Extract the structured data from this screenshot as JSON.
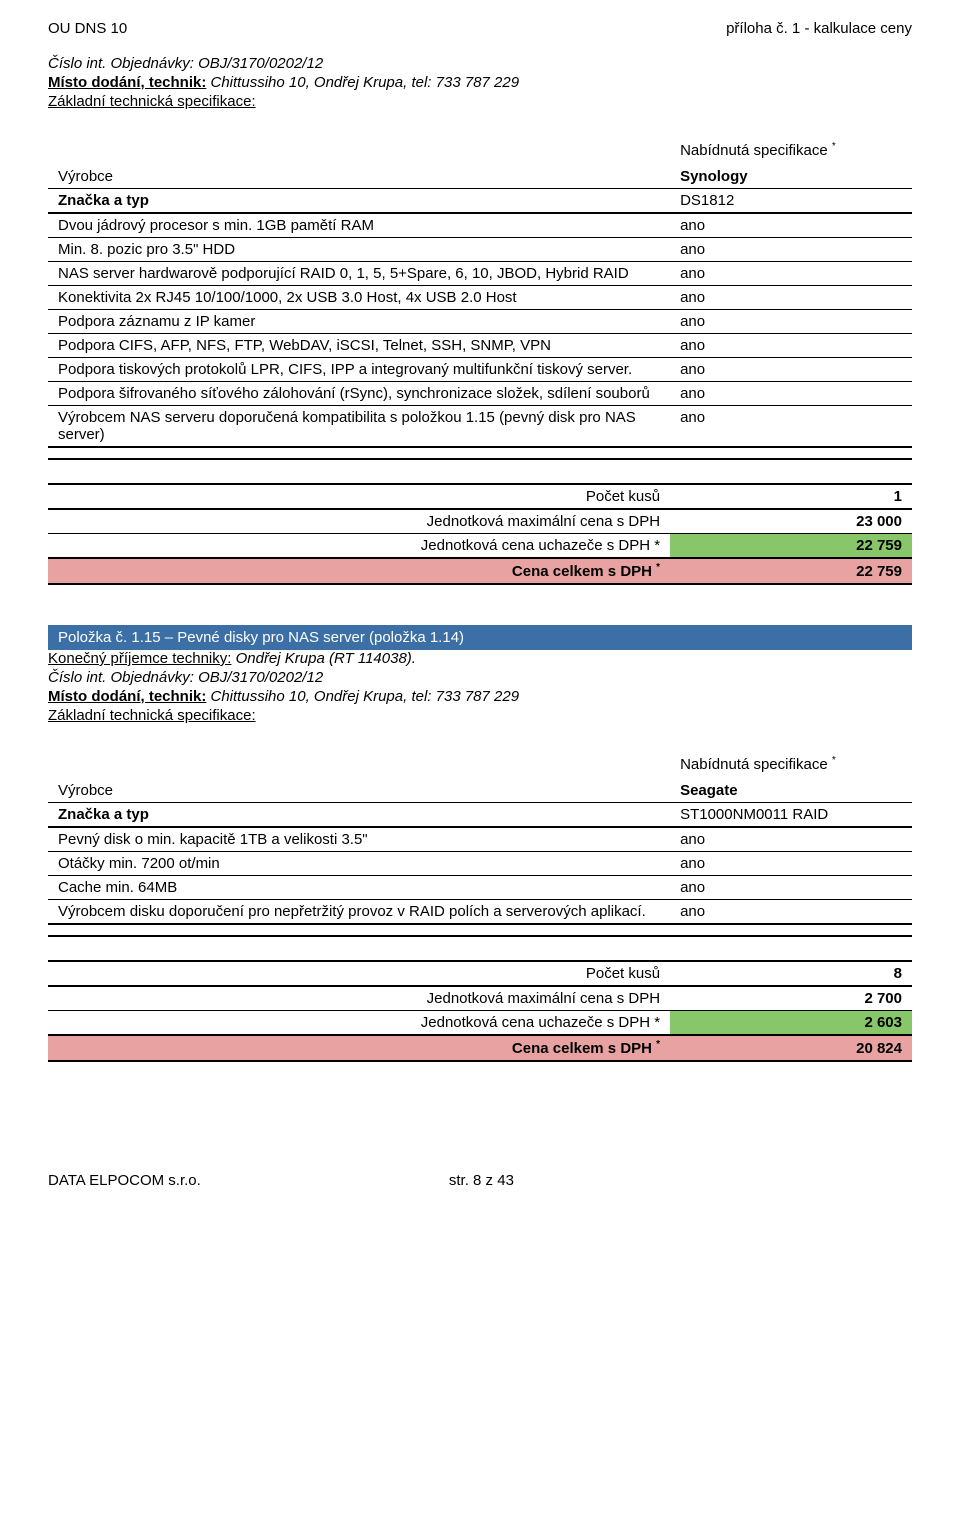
{
  "header": {
    "left": "OU DNS 10",
    "right": "příloha č. 1 - kalkulace ceny"
  },
  "block1": {
    "order_line": "Číslo int. Objednávky: OBJ/3170/0202/12",
    "delivery_label": "Místo dodání, technik:",
    "delivery_value": " Chittussiho 10, Ondřej Krupa, tel: 733 787 229",
    "spec_label": "Základní technická specifikace:",
    "offer_header": "Nabídnutá specifikace",
    "rows": [
      {
        "label": "Výrobce",
        "value": "Synology",
        "thick": false,
        "offer_bold": true
      },
      {
        "label": "Značka a typ",
        "value": "DS1812",
        "thick": true,
        "label_bold": true
      },
      {
        "label": "Dvou jádrový procesor s min. 1GB pamětí RAM",
        "value": "ano",
        "thick": false
      },
      {
        "label": "Min. 8. pozic pro 3.5\" HDD",
        "value": "ano",
        "thick": false
      },
      {
        "label": "NAS server hardwarově podporující RAID 0, 1, 5, 5+Spare, 6, 10, JBOD, Hybrid RAID",
        "value": "ano",
        "thick": false
      },
      {
        "label": "Konektivita 2x RJ45 10/100/1000, 2x USB 3.0 Host, 4x USB 2.0 Host",
        "value": "ano",
        "thick": false
      },
      {
        "label": "Podpora záznamu z IP kamer",
        "value": "ano",
        "thick": false
      },
      {
        "label": "Podpora CIFS, AFP, NFS, FTP, WebDAV, iSCSI, Telnet, SSH, SNMP, VPN",
        "value": "ano",
        "thick": false
      },
      {
        "label": "Podpora tiskových protokolů LPR, CIFS, IPP a integrovaný multifunkční tiskový server.",
        "value": "ano",
        "thick": false
      },
      {
        "label": "Podpora šifrovaného síťového zálohování (rSync), synchronizace složek, sdílení souborů",
        "value": "ano",
        "thick": false
      },
      {
        "label": "Výrobcem NAS serveru doporučená kompatibilita s položkou 1.15 (pevný disk pro NAS server)",
        "value": "ano",
        "thick": true
      }
    ],
    "price": {
      "qty_label": "Počet kusů",
      "qty": "1",
      "unit_max_label": "Jednotková maximální cena s DPH",
      "unit_max": "23 000",
      "unit_bid_label": "Jednotková cena uchazeče s DPH *",
      "unit_bid": "22 759",
      "total_label": "Cena celkem s DPH",
      "total": "22 759"
    }
  },
  "block2": {
    "title": "Položka č. 1.15 – Pevné disky pro NAS server (položka 1.14)",
    "recipient_label": "Konečný příjemce techniky:",
    "recipient_value": "  Ondřej Krupa (RT 114038).",
    "order_line": "Číslo int. Objednávky: OBJ/3170/0202/12",
    "delivery_label": "Místo dodání, technik:",
    "delivery_value": " Chittussiho 10, Ondřej Krupa, tel: 733 787 229",
    "spec_label": "Základní technická specifikace:",
    "offer_header": "Nabídnutá specifikace",
    "rows": [
      {
        "label": "Výrobce",
        "value": "Seagate",
        "thick": false,
        "offer_bold": true
      },
      {
        "label": "Značka a typ",
        "value": "ST1000NM0011 RAID",
        "thick": true,
        "label_bold": true
      },
      {
        "label": "Pevný disk o min. kapacitě 1TB a velikosti 3.5\"",
        "value": "ano",
        "thick": false
      },
      {
        "label": "Otáčky min. 7200 ot/min",
        "value": "ano",
        "thick": false
      },
      {
        "label": "Cache min. 64MB",
        "value": "ano",
        "thick": false
      },
      {
        "label": "Výrobcem disku doporučení pro nepřetržitý provoz v RAID polích a serverových aplikací.",
        "value": "ano",
        "thick": true
      }
    ],
    "price": {
      "qty_label": "Počet kusů",
      "qty": "8",
      "unit_max_label": "Jednotková maximální cena s DPH",
      "unit_max": "2 700",
      "unit_bid_label": "Jednotková cena uchazeče s DPH *",
      "unit_bid": "2 603",
      "total_label": "Cena celkem s DPH",
      "total": "20 824"
    }
  },
  "footer": {
    "left": "DATA ELPOCOM s.r.o.",
    "center": "str. 8 z 43"
  },
  "style": {
    "green": "#88c66a",
    "red": "#e8a2a2",
    "blue": "#3b6fa6",
    "text": "#000000",
    "bg": "#ffffff"
  }
}
